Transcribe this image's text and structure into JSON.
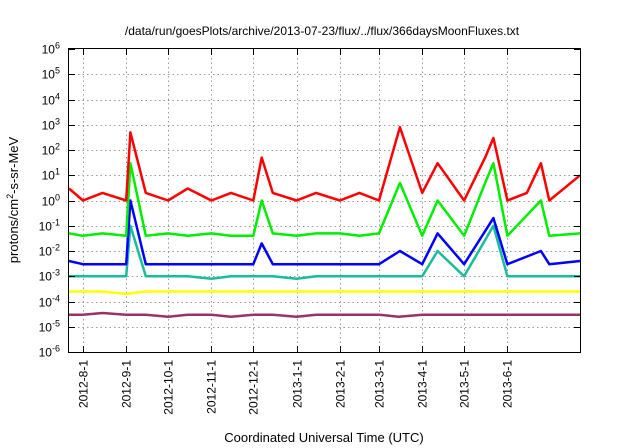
{
  "chart_data": {
    "type": "line",
    "title": "/data/run/goesPlots/archive/2013-07-23/flux/../flux/366daysMoonFluxes.txt",
    "xlabel": "Coordinated Universal Time (UTC)",
    "ylabel": "protons/cm²-s-sr-MeV",
    "ylabel_main": "protons/cm",
    "ylabel_sup": "2",
    "ylabel_rest": "-s-sr-MeV",
    "y_scale": "log",
    "ylim": [
      1e-06,
      1000000.0
    ],
    "xlim": [
      "2012-07-22",
      "2013-07-23"
    ],
    "grid": true,
    "legend": "none",
    "y_ticks": [
      {
        "value": 1e-06,
        "base": "10",
        "exp": "-6"
      },
      {
        "value": 1e-05,
        "base": "10",
        "exp": "-5"
      },
      {
        "value": 0.0001,
        "base": "10",
        "exp": "-4"
      },
      {
        "value": 0.001,
        "base": "10",
        "exp": "-3"
      },
      {
        "value": 0.01,
        "base": "10",
        "exp": "-2"
      },
      {
        "value": 0.1,
        "base": "10",
        "exp": "-1"
      },
      {
        "value": 1.0,
        "base": "10",
        "exp": "0"
      },
      {
        "value": 10.0,
        "base": "10",
        "exp": "1"
      },
      {
        "value": 100.0,
        "base": "10",
        "exp": "2"
      },
      {
        "value": 1000.0,
        "base": "10",
        "exp": "3"
      },
      {
        "value": 10000.0,
        "base": "10",
        "exp": "4"
      },
      {
        "value": 100000.0,
        "base": "10",
        "exp": "5"
      },
      {
        "value": 1000000.0,
        "base": "10",
        "exp": "6"
      }
    ],
    "x_ticks": [
      {
        "date": "2012-08-01",
        "label": "2012-8-1"
      },
      {
        "date": "2012-09-01",
        "label": "2012-9-1"
      },
      {
        "date": "2012-10-01",
        "label": "2012-10-1"
      },
      {
        "date": "2012-11-01",
        "label": "2012-11-1"
      },
      {
        "date": "2012-12-01",
        "label": "2012-12-1"
      },
      {
        "date": "2013-01-01",
        "label": "2013-1-1"
      },
      {
        "date": "2013-02-01",
        "label": "2013-2-1"
      },
      {
        "date": "2013-03-01",
        "label": "2013-3-1"
      },
      {
        "date": "2013-04-01",
        "label": "2013-4-1"
      },
      {
        "date": "2013-05-01",
        "label": "2013-5-1"
      },
      {
        "date": "2013-06-01",
        "label": "2013-6-1"
      }
    ],
    "series": [
      {
        "color": "#993366",
        "dates": [
          "2012-07-22",
          "2012-08-01",
          "2012-08-15",
          "2012-09-01",
          "2012-09-15",
          "2012-10-01",
          "2012-10-15",
          "2012-11-01",
          "2012-11-15",
          "2012-12-01",
          "2012-12-15",
          "2013-01-01",
          "2013-01-15",
          "2013-02-01",
          "2013-02-15",
          "2013-03-01",
          "2013-03-15",
          "2013-04-01",
          "2013-04-15",
          "2013-05-01",
          "2013-05-15",
          "2013-06-01",
          "2013-06-15",
          "2013-07-01",
          "2013-07-23"
        ],
        "values": [
          3e-05,
          3e-05,
          3.5e-05,
          3e-05,
          3e-05,
          2.5e-05,
          3e-05,
          3e-05,
          2.5e-05,
          3e-05,
          3e-05,
          2.5e-05,
          3e-05,
          3e-05,
          3e-05,
          3e-05,
          2.5e-05,
          3e-05,
          3e-05,
          3e-05,
          3e-05,
          3e-05,
          3e-05,
          3e-05,
          3e-05
        ]
      },
      {
        "color": "#ffff00",
        "dates": [
          "2012-07-22",
          "2012-08-01",
          "2012-08-15",
          "2012-09-01",
          "2012-09-15",
          "2012-10-01",
          "2012-10-15",
          "2012-11-01",
          "2012-11-15",
          "2012-12-01",
          "2012-12-15",
          "2013-01-01",
          "2013-01-15",
          "2013-02-01",
          "2013-02-15",
          "2013-03-01",
          "2013-03-15",
          "2013-04-01",
          "2013-04-15",
          "2013-05-01",
          "2013-05-15",
          "2013-06-01",
          "2013-06-15",
          "2013-07-01",
          "2013-07-23"
        ],
        "values": [
          0.00025,
          0.00025,
          0.00025,
          0.0002,
          0.00025,
          0.00025,
          0.00025,
          0.00025,
          0.00025,
          0.00025,
          0.00025,
          0.00025,
          0.00025,
          0.00025,
          0.00025,
          0.00025,
          0.00025,
          0.00025,
          0.00025,
          0.00025,
          0.00025,
          0.00025,
          0.00025,
          0.00025,
          0.00025
        ]
      },
      {
        "color": "#1abc9c",
        "dates": [
          "2012-07-22",
          "2012-08-01",
          "2012-08-15",
          "2012-09-01",
          "2012-09-04",
          "2012-09-15",
          "2012-10-01",
          "2012-10-15",
          "2012-11-01",
          "2012-11-15",
          "2012-12-01",
          "2012-12-15",
          "2013-01-01",
          "2013-01-15",
          "2013-02-01",
          "2013-02-15",
          "2013-03-01",
          "2013-03-15",
          "2013-04-01",
          "2013-04-12",
          "2013-05-01",
          "2013-05-22",
          "2013-06-01",
          "2013-06-15",
          "2013-07-01",
          "2013-07-23"
        ],
        "values": [
          0.001,
          0.001,
          0.001,
          0.001,
          0.1,
          0.001,
          0.001,
          0.001,
          0.0008,
          0.001,
          0.001,
          0.001,
          0.0008,
          0.001,
          0.001,
          0.001,
          0.001,
          0.001,
          0.001,
          0.01,
          0.001,
          0.1,
          0.001,
          0.001,
          0.001,
          0.001
        ]
      },
      {
        "color": "#0000ff",
        "dates": [
          "2012-07-22",
          "2012-08-01",
          "2012-08-15",
          "2012-09-01",
          "2012-09-04",
          "2012-09-15",
          "2012-10-01",
          "2012-10-15",
          "2012-11-01",
          "2012-11-15",
          "2012-12-01",
          "2012-12-07",
          "2012-12-15",
          "2013-01-01",
          "2013-01-15",
          "2013-02-01",
          "2013-02-15",
          "2013-03-01",
          "2013-03-16",
          "2013-04-01",
          "2013-04-12",
          "2013-05-01",
          "2013-05-22",
          "2013-06-01",
          "2013-06-25",
          "2013-07-01",
          "2013-07-23"
        ],
        "values": [
          0.004,
          0.003,
          0.003,
          0.003,
          1.0,
          0.003,
          0.003,
          0.003,
          0.003,
          0.003,
          0.003,
          0.02,
          0.003,
          0.003,
          0.003,
          0.003,
          0.003,
          0.003,
          0.01,
          0.003,
          0.05,
          0.003,
          0.2,
          0.003,
          0.01,
          0.003,
          0.004
        ]
      },
      {
        "color": "#00ee00",
        "dates": [
          "2012-07-22",
          "2012-08-01",
          "2012-08-15",
          "2012-09-01",
          "2012-09-04",
          "2012-09-15",
          "2012-10-01",
          "2012-10-15",
          "2012-11-01",
          "2012-11-15",
          "2012-12-01",
          "2012-12-07",
          "2012-12-15",
          "2013-01-01",
          "2013-01-15",
          "2013-02-01",
          "2013-02-15",
          "2013-03-01",
          "2013-03-16",
          "2013-04-01",
          "2013-04-12",
          "2013-05-01",
          "2013-05-16",
          "2013-05-22",
          "2013-06-01",
          "2013-06-25",
          "2013-07-01",
          "2013-07-23"
        ],
        "values": [
          0.05,
          0.04,
          0.05,
          0.04,
          30,
          0.04,
          0.05,
          0.04,
          0.05,
          0.04,
          0.04,
          1.0,
          0.05,
          0.04,
          0.05,
          0.05,
          0.04,
          0.05,
          5.0,
          0.04,
          1.0,
          0.04,
          5.0,
          30,
          0.04,
          1.0,
          0.04,
          0.05
        ]
      },
      {
        "color": "#ff0000",
        "dates": [
          "2012-07-22",
          "2012-08-01",
          "2012-08-15",
          "2012-09-01",
          "2012-09-04",
          "2012-09-15",
          "2012-10-01",
          "2012-10-15",
          "2012-11-01",
          "2012-11-15",
          "2012-12-01",
          "2012-12-07",
          "2012-12-15",
          "2013-01-01",
          "2013-01-15",
          "2013-02-01",
          "2013-02-15",
          "2013-03-01",
          "2013-03-16",
          "2013-04-01",
          "2013-04-12",
          "2013-05-01",
          "2013-05-16",
          "2013-05-22",
          "2013-06-01",
          "2013-06-15",
          "2013-06-25",
          "2013-07-01",
          "2013-07-23"
        ],
        "values": [
          3.0,
          1.0,
          2.0,
          1.0,
          500,
          2.0,
          1.0,
          3.0,
          1.0,
          2.0,
          1.0,
          50,
          2.0,
          1.0,
          2.0,
          1.0,
          2.0,
          1.0,
          800,
          2.0,
          30,
          1.0,
          50,
          300,
          1.0,
          2.0,
          30,
          1.0,
          10
        ]
      }
    ]
  }
}
